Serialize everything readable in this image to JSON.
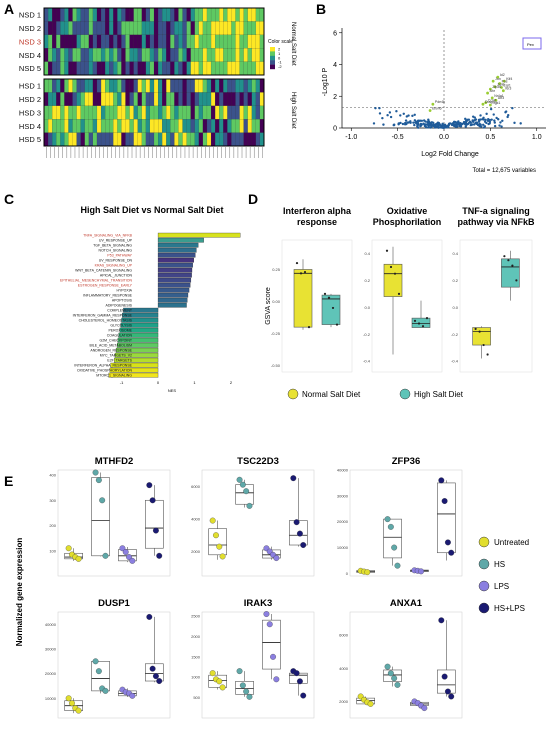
{
  "panel_letters": [
    "A",
    "B",
    "C",
    "D",
    "E"
  ],
  "chart_data": [
    {
      "panel": "A",
      "type": "heatmap",
      "rows": [
        "NSD 1",
        "NSD 2",
        "NSD 3",
        "NSD 4",
        "NSD 5",
        "HSD 1",
        "HSD 2",
        "HSD 3",
        "HSD 4",
        "HSD 5"
      ],
      "row_label_colors": [
        "#111111",
        "#111111",
        "#c0392b",
        "#111111",
        "#111111",
        "#111111",
        "#111111",
        "#111111",
        "#111111",
        "#111111"
      ],
      "group_labels": [
        "Normal Salt Diet",
        "High Salt Diet"
      ],
      "legend_title": "Color scale",
      "scale_ticks": [
        "2",
        "1",
        "0",
        "-1",
        "-2"
      ],
      "colors": [
        "#440154",
        "#3b528b",
        "#21918c",
        "#5ec962",
        "#fde725"
      ]
    },
    {
      "panel": "B",
      "type": "scatter",
      "xlabel": "Log2 Fold Change",
      "ylabel": "-Log10 P",
      "xlim": [
        -1.1,
        1.1
      ],
      "ylim": [
        0,
        6.3
      ],
      "xticks": [
        "-1.0",
        "-0.5",
        "0.0",
        "0.5",
        "1.0"
      ],
      "yticks": [
        "0",
        "2",
        "4",
        "6"
      ],
      "legend": "Pex",
      "footer": "Total = 12,675 variables",
      "threshold_x": 0.0,
      "threshold_y": 1.3,
      "colors": {
        "nonsig": "#1f5b99",
        "sig": "#9acd32",
        "legend_box": "#7b68ee"
      },
      "labeled_points": [
        {
          "label": "Id2",
          "x": 0.58,
          "y": 3.2
        },
        {
          "label": "Jun",
          "x": 0.53,
          "y": 2.95
        },
        {
          "label": "Ahr",
          "x": 0.47,
          "y": 2.2
        },
        {
          "label": "Klf4",
          "x": 0.65,
          "y": 2.95
        },
        {
          "label": "Fos",
          "x": 0.6,
          "y": 2.8
        },
        {
          "label": "Junb",
          "x": 0.55,
          "y": 2.6
        },
        {
          "label": "Egr1",
          "x": 0.62,
          "y": 2.55
        },
        {
          "label": "Ier3",
          "x": 0.64,
          "y": 2.35
        },
        {
          "label": "Zfp36",
          "x": 0.5,
          "y": 2.45
        },
        {
          "label": "Nr4a1",
          "x": 0.52,
          "y": 1.9
        },
        {
          "label": "Atf3",
          "x": 0.56,
          "y": 1.75
        },
        {
          "label": "Dusp1",
          "x": 0.42,
          "y": 1.5
        },
        {
          "label": "Ccnl1",
          "x": 0.45,
          "y": 1.6
        },
        {
          "label": "Sgk1",
          "x": 0.5,
          "y": 1.45
        },
        {
          "label": "Pde4b",
          "x": -0.12,
          "y": 1.5
        },
        {
          "label": "Elovl6",
          "x": -0.15,
          "y": 1.1
        }
      ]
    },
    {
      "panel": "C",
      "type": "bar",
      "title": "High Salt Diet vs Normal Salt Diet",
      "xlabel": "NES",
      "xlim": [
        -1.7,
        2.3
      ],
      "xticks": [
        "-1",
        "0",
        "1",
        "2"
      ],
      "categories": [
        "TNFA_SIGNALING_VIA_NFKB",
        "UV_RESPONSE_UP",
        "TGF_BETA_SIGNALING",
        "NOTCH_SIGNALING",
        "P53_PATHWAY",
        "UV_RESPONSE_DN",
        "KRAS_SIGNALING_UP",
        "WNT_BETA_CATENIN_SIGNALING",
        "APICAL_JUNCTION",
        "EPITHELIAL_MESENCHYMAL_TRANSITION",
        "ESTROGEN_RESPONSE_EARLY",
        "HYPOXIA",
        "INFLAMMATORY_RESPONSE",
        "APOPTOSIS",
        "ADIPOGENESIS",
        "COMPLEMENT",
        "INTERFERON_GAMMA_RESPONSE",
        "CHOLESTEROL_HOMEOSTASIS",
        "GLYCOLYSIS",
        "PEROXISOME",
        "COAGULATION",
        "G2M_CHECKPOINT",
        "BILE_ACID_METABOLISM",
        "ANDROGEN_RESPONSE",
        "MYC_TARGETS_V2",
        "E2F_TARGETS",
        "INTERFERON_ALPHA_RESPONSE",
        "OXIDATIVE_PHOSPHORYLATION",
        "MTORC1_SIGNALING"
      ],
      "label_colors": [
        "#c0392b",
        "#111111",
        "#111111",
        "#111111",
        "#c0392b",
        "#111111",
        "#c0392b",
        "#111111",
        "#111111",
        "#c0392b",
        "#c0392b",
        "#111111",
        "#111111",
        "#111111",
        "#111111",
        "#111111",
        "#111111",
        "#111111",
        "#111111",
        "#111111",
        "#111111",
        "#111111",
        "#111111",
        "#111111",
        "#111111",
        "#111111",
        "#111111",
        "#111111",
        "#111111"
      ],
      "values": [
        2.25,
        1.25,
        1.1,
        1.05,
        1.02,
        0.98,
        0.95,
        0.93,
        0.92,
        0.9,
        0.88,
        0.85,
        0.82,
        0.8,
        0.78,
        -0.95,
        -0.98,
        -1.0,
        -1.02,
        -1.05,
        -1.08,
        -1.1,
        -1.12,
        -1.15,
        -1.18,
        -1.2,
        -1.3,
        -1.32,
        -1.35
      ],
      "bar_colors": [
        "#d7e21e",
        "#3a9d8f",
        "#2a788e",
        "#2e6f8e",
        "#3b528b",
        "#46337f",
        "#3b528b",
        "#433e85",
        "#414487",
        "#3e4989",
        "#3b528b",
        "#38598c",
        "#355f8d",
        "#31688e",
        "#2c728e",
        "#2a788e",
        "#26828e",
        "#21918c",
        "#1fa088",
        "#22a884",
        "#35b779",
        "#44bf70",
        "#5ec962",
        "#7ad151",
        "#9bd93c",
        "#b5de2b",
        "#d8e219",
        "#e5e419",
        "#f1e51d"
      ]
    },
    {
      "panel": "D",
      "type": "box",
      "ylabel": "GSVA score",
      "titles": [
        [
          "Interferon alpha",
          "response"
        ],
        [
          "Oxidative",
          "Phosphorilation"
        ],
        [
          "TNF-a signaling",
          "pathway via NFkB"
        ]
      ],
      "yticks": [
        [
          "0.25",
          "0.00",
          "-0.25",
          "-0.50"
        ],
        [
          "0.4",
          "0.2",
          "0.0",
          "-0.2",
          "-0.4"
        ],
        [
          "0.4",
          "0.2",
          "0.0",
          "-0.2",
          "-0.4"
        ]
      ],
      "ylims": [
        [
          -0.55,
          0.48
        ],
        [
          -0.48,
          0.5
        ],
        [
          -0.48,
          0.5
        ]
      ],
      "groups": [
        "Normal Salt Diet",
        "High Salt Diet"
      ],
      "group_colors": [
        "#e8e233",
        "#5fc4b8"
      ],
      "boxes": [
        [
          {
            "q1": -0.2,
            "med": 0.22,
            "q3": 0.25,
            "lo": -0.22,
            "hi": 0.33,
            "pts": [
              0.3,
              0.22,
              0.23,
              -0.2
            ]
          },
          {
            "q1": -0.18,
            "med": 0.02,
            "q3": 0.05,
            "lo": -0.2,
            "hi": 0.06,
            "pts": [
              0.06,
              0.03,
              -0.05,
              -0.18
            ]
          }
        ],
        [
          {
            "q1": 0.08,
            "med": 0.25,
            "q3": 0.32,
            "lo": -0.35,
            "hi": 0.45,
            "pts": [
              0.42,
              0.3,
              0.25,
              0.1
            ]
          },
          {
            "q1": -0.15,
            "med": -0.12,
            "q3": -0.08,
            "lo": -0.15,
            "hi": 0.05,
            "pts": [
              -0.1,
              -0.12,
              -0.14,
              -0.08
            ]
          }
        ],
        [
          {
            "q1": -0.28,
            "med": -0.18,
            "q3": -0.15,
            "lo": -0.38,
            "hi": -0.14,
            "pts": [
              -0.16,
              -0.18,
              -0.28,
              -0.35
            ]
          },
          {
            "q1": 0.15,
            "med": 0.3,
            "q3": 0.36,
            "lo": 0.05,
            "hi": 0.42,
            "pts": [
              0.38,
              0.35,
              0.31,
              0.2
            ]
          }
        ]
      ]
    },
    {
      "panel": "E",
      "type": "box",
      "ylabel": "Normalized gene expression",
      "groups": [
        "Untreated",
        "HS",
        "LPS",
        "HS+LPS"
      ],
      "group_colors": [
        "#e1de2e",
        "#5fa8a8",
        "#8b7fe0",
        "#1a1a72"
      ],
      "genes": [
        {
          "name": "MTHFD2",
          "ylim": [
            0,
            420
          ],
          "yticks": [
            "400",
            "300",
            "200",
            "100"
          ],
          "boxes": [
            {
              "q1": 68,
              "med": 75,
              "q3": 90,
              "lo": 60,
              "hi": 110,
              "pts": [
                110,
                85,
                75,
                68
              ]
            },
            {
              "q1": 80,
              "med": 220,
              "q3": 390,
              "lo": 78,
              "hi": 410,
              "pts": [
                410,
                380,
                300,
                80
              ]
            },
            {
              "q1": 60,
              "med": 80,
              "q3": 105,
              "lo": 55,
              "hi": 115,
              "pts": [
                110,
                95,
                75,
                60
              ]
            },
            {
              "q1": 110,
              "med": 190,
              "q3": 300,
              "lo": 80,
              "hi": 360,
              "pts": [
                360,
                300,
                180,
                80
              ]
            }
          ]
        },
        {
          "name": "TSC22D3",
          "ylim": [
            500,
            7000
          ],
          "yticks": [
            "6000",
            "4000",
            "2000"
          ],
          "boxes": [
            {
              "q1": 1800,
              "med": 2400,
              "q3": 3400,
              "lo": 1500,
              "hi": 3900,
              "pts": [
                3900,
                3000,
                2300,
                1700
              ]
            },
            {
              "q1": 4900,
              "med": 5600,
              "q3": 6100,
              "lo": 4700,
              "hi": 6400,
              "pts": [
                6400,
                6100,
                5700,
                4800
              ]
            },
            {
              "q1": 1600,
              "med": 1800,
              "q3": 2100,
              "lo": 1500,
              "hi": 2300,
              "pts": [
                2200,
                2000,
                1800,
                1600
              ]
            },
            {
              "q1": 2400,
              "med": 3000,
              "q3": 3900,
              "lo": 2300,
              "hi": 6500,
              "pts": [
                6500,
                3800,
                3100,
                2400
              ]
            }
          ]
        },
        {
          "name": "ZFP36",
          "ylim": [
            -1000,
            40000
          ],
          "yticks": [
            "40000",
            "30000",
            "20000",
            "10000",
            "0"
          ],
          "boxes": [
            {
              "q1": 400,
              "med": 800,
              "q3": 1100,
              "lo": 200,
              "hi": 1200,
              "pts": [
                1000,
                700,
                500
              ]
            },
            {
              "q1": 6000,
              "med": 14000,
              "q3": 21000,
              "lo": 3000,
              "hi": 21000,
              "pts": [
                21000,
                18000,
                10000,
                3000
              ]
            },
            {
              "q1": 700,
              "med": 1000,
              "q3": 1300,
              "lo": 600,
              "hi": 1400,
              "pts": [
                1200,
                1000,
                800
              ]
            },
            {
              "q1": 8000,
              "med": 23000,
              "q3": 35000,
              "lo": 5000,
              "hi": 36000,
              "pts": [
                36000,
                28000,
                12000,
                8000
              ]
            }
          ]
        },
        {
          "name": "DUSP1",
          "ylim": [
            2000,
            45000
          ],
          "yticks": [
            "40000",
            "30000",
            "20000",
            "10000"
          ],
          "boxes": [
            {
              "q1": 5000,
              "med": 7000,
              "q3": 9000,
              "lo": 4000,
              "hi": 10000,
              "pts": [
                10000,
                8000,
                6000,
                5000
              ]
            },
            {
              "q1": 13000,
              "med": 18000,
              "q3": 25000,
              "lo": 12000,
              "hi": 25000,
              "pts": [
                25000,
                21000,
                14000,
                13000
              ]
            },
            {
              "q1": 11000,
              "med": 12000,
              "q3": 13000,
              "lo": 10500,
              "hi": 14000,
              "pts": [
                13500,
                12500,
                12000,
                11000
              ]
            },
            {
              "q1": 17000,
              "med": 20000,
              "q3": 24000,
              "lo": 16500,
              "hi": 43000,
              "pts": [
                43000,
                22000,
                19000,
                17000
              ]
            }
          ]
        },
        {
          "name": "IRAK3",
          "ylim": [
            0,
            2600
          ],
          "yticks": [
            "2500",
            "2000",
            "1500",
            "1000",
            "500"
          ],
          "boxes": [
            {
              "q1": 750,
              "med": 920,
              "q3": 1050,
              "lo": 700,
              "hi": 1150,
              "pts": [
                1100,
                950,
                900,
                750
              ]
            },
            {
              "q1": 580,
              "med": 720,
              "q3": 900,
              "lo": 520,
              "hi": 1150,
              "pts": [
                1150,
                800,
                650,
                520
              ]
            },
            {
              "q1": 1200,
              "med": 1850,
              "q3": 2400,
              "lo": 950,
              "hi": 2550,
              "pts": [
                2550,
                2300,
                1500,
                950
              ]
            },
            {
              "q1": 850,
              "med": 1050,
              "q3": 1100,
              "lo": 550,
              "hi": 1150,
              "pts": [
                1150,
                1100,
                900,
                550
              ]
            }
          ]
        },
        {
          "name": "ANXA1",
          "ylim": [
            1000,
            7400
          ],
          "yticks": [
            "6000",
            "4000",
            "2000"
          ],
          "boxes": [
            {
              "q1": 1850,
              "med": 2050,
              "q3": 2200,
              "lo": 1800,
              "hi": 2300,
              "pts": [
                2300,
                2100,
                1950,
                1850
              ]
            },
            {
              "q1": 3200,
              "med": 3600,
              "q3": 3900,
              "lo": 2900,
              "hi": 4100,
              "pts": [
                4100,
                3700,
                3400,
                3000
              ]
            },
            {
              "q1": 1750,
              "med": 1850,
              "q3": 1950,
              "lo": 1600,
              "hi": 2050,
              "pts": [
                2000,
                1900,
                1750,
                1600
              ]
            },
            {
              "q1": 2500,
              "med": 3000,
              "q3": 3900,
              "lo": 2300,
              "hi": 6900,
              "pts": [
                6900,
                3500,
                2600,
                2300
              ]
            }
          ]
        }
      ]
    }
  ]
}
